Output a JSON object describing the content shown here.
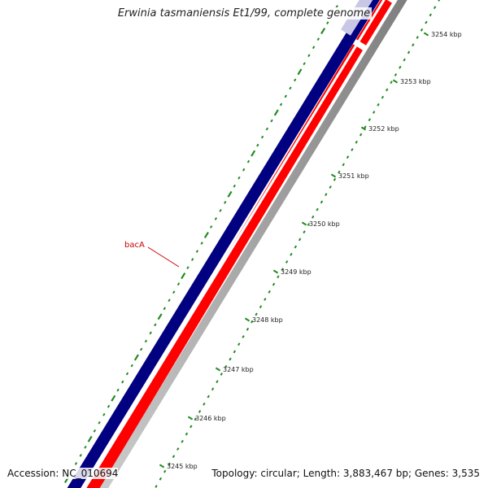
{
  "title": "Erwinia tasmaniensis Et1/99, complete genome",
  "accession": "Accession: NC_010694",
  "summary": "Topology: circular; Length: 3,883,467 bp; Genes: 3,535",
  "gene_label": {
    "text": "bacA",
    "color": "#cc0000"
  },
  "colors": {
    "forward_strand": "#000080",
    "reverse_strand": "#ff0000",
    "backbone": "#999999",
    "ticks": "#228b22"
  },
  "scale_ticks": [
    {
      "label": "3245 kbp"
    },
    {
      "label": "3246 kbp"
    },
    {
      "label": "3247 kbp"
    },
    {
      "label": "3248 kbp"
    },
    {
      "label": "3249 kbp"
    },
    {
      "label": "3250 kbp"
    },
    {
      "label": "3251 kbp"
    },
    {
      "label": "3252 kbp"
    },
    {
      "label": "3253 kbp"
    },
    {
      "label": "3254 kbp"
    }
  ]
}
